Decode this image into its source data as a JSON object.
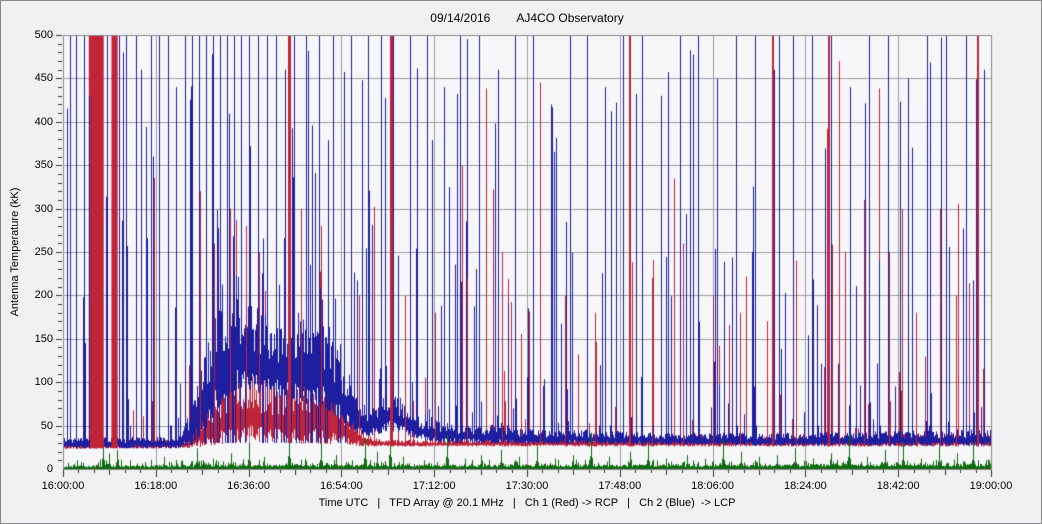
{
  "window": {
    "background": "#f1f1f4",
    "border_color": "#888888"
  },
  "header": {
    "date": "09/14/2016",
    "observatory": "AJ4CO Observatory"
  },
  "footer": {
    "caption": "Time UTC   |   TFD Array @ 20.1 MHz   |   Ch 1 (Red) -> RCP   |   Ch 2 (Blue)  -> LCP"
  },
  "chart_data": {
    "type": "line",
    "title": "09/14/2016  AJ4CO Observatory",
    "ylabel": "Antenna Temperature (kK)",
    "xlabel": "Time UTC",
    "ylim": [
      0,
      500
    ],
    "y_major_step": 50,
    "y_minor_step": 10,
    "x_start": "16:00:00",
    "x_end": "19:00:00",
    "duration_min": 180,
    "x_major_step_min": 18,
    "x_mid_step_min": 9,
    "x_minor_step_min": 3,
    "x_tick_labels": [
      "16:00:00",
      "16:18:00",
      "16:36:00",
      "16:54:00",
      "17:12:00",
      "17:30:00",
      "17:48:00",
      "18:06:00",
      "18:24:00",
      "18:42:00",
      "19:00:00"
    ],
    "y_tick_values": [
      0,
      50,
      100,
      150,
      200,
      250,
      300,
      350,
      400,
      450,
      500
    ],
    "grid": {
      "on": true,
      "color": "#9c9ca4"
    },
    "plot_background": "#f7f7fa",
    "plot_border_color": "#8a8a8a",
    "tick_color": "#333333",
    "legend_position": "bottom-caption",
    "render_seed": 1234,
    "series": [
      {
        "name": "green-trace",
        "label": "",
        "color": "#0f6b0f",
        "fill_from_zero": true,
        "envelope": [
          [
            0,
            0,
            4
          ],
          [
            30,
            0,
            5
          ],
          [
            60,
            0,
            5
          ],
          [
            120,
            0,
            5
          ],
          [
            180,
            0,
            6
          ]
        ],
        "random_spikes": {
          "prob": 0.3,
          "min": 2,
          "max": 11,
          "power": 2
        },
        "cluster_spikes": true,
        "spikes": [
          [
            3.5,
            8
          ],
          [
            7.8,
            34
          ],
          [
            9,
            18
          ],
          [
            10.5,
            22
          ],
          [
            13,
            10
          ],
          [
            16,
            8
          ],
          [
            19.5,
            14
          ],
          [
            23,
            10
          ],
          [
            26,
            24
          ],
          [
            29,
            12
          ],
          [
            32.5,
            18
          ],
          [
            36,
            30
          ],
          [
            39,
            14
          ],
          [
            43.8,
            42
          ],
          [
            47,
            12
          ],
          [
            50,
            30
          ],
          [
            53,
            16
          ],
          [
            56,
            10
          ],
          [
            58.5,
            36
          ],
          [
            61,
            20
          ],
          [
            63.5,
            46
          ],
          [
            66,
            14
          ],
          [
            70,
            10
          ],
          [
            74.5,
            40
          ],
          [
            78,
            12
          ],
          [
            81,
            16
          ],
          [
            85,
            22
          ],
          [
            88.5,
            14
          ],
          [
            92,
            26
          ],
          [
            95.5,
            12
          ],
          [
            99,
            16
          ],
          [
            102.5,
            42
          ],
          [
            106,
            14
          ],
          [
            110,
            20
          ],
          [
            113.5,
            30
          ],
          [
            117,
            12
          ],
          [
            121,
            16
          ],
          [
            124.5,
            12
          ],
          [
            128,
            34
          ],
          [
            131.5,
            20
          ],
          [
            135,
            14
          ],
          [
            138.5,
            16
          ],
          [
            142,
            24
          ],
          [
            145.5,
            12
          ],
          [
            149,
            18
          ],
          [
            152.5,
            40
          ],
          [
            156,
            14
          ],
          [
            159.5,
            22
          ],
          [
            163,
            30
          ],
          [
            166.5,
            12
          ],
          [
            170,
            26
          ],
          [
            173.5,
            18
          ],
          [
            176.5,
            30
          ]
        ]
      },
      {
        "name": "channel-1-red",
        "label": "Ch 1 (Red) -> RCP",
        "color": "#c02438",
        "envelope": [
          [
            0,
            23,
            32
          ],
          [
            24,
            24,
            34
          ],
          [
            26,
            25,
            55
          ],
          [
            28,
            27,
            75
          ],
          [
            30,
            28,
            90
          ],
          [
            32,
            30,
            100
          ],
          [
            34,
            31,
            108
          ],
          [
            36,
            32,
            112
          ],
          [
            38,
            31,
            105
          ],
          [
            40,
            30,
            100
          ],
          [
            42,
            30,
            95
          ],
          [
            44,
            30,
            92
          ],
          [
            46,
            29,
            95
          ],
          [
            48,
            30,
            100
          ],
          [
            50,
            29,
            92
          ],
          [
            52,
            28,
            85
          ],
          [
            54,
            28,
            75
          ],
          [
            56,
            27,
            60
          ],
          [
            58,
            26,
            45
          ],
          [
            60,
            26,
            36
          ],
          [
            65,
            26,
            34
          ],
          [
            70,
            26,
            34
          ],
          [
            80,
            26,
            34
          ],
          [
            90,
            26,
            35
          ],
          [
            100,
            26,
            35
          ],
          [
            110,
            26,
            35
          ],
          [
            120,
            26,
            36
          ],
          [
            130,
            26,
            36
          ],
          [
            140,
            26,
            37
          ],
          [
            150,
            26,
            38
          ],
          [
            160,
            26,
            38
          ],
          [
            170,
            26,
            40
          ],
          [
            180,
            26,
            40
          ]
        ],
        "random_spikes": {
          "prob": 0.09,
          "min": 40,
          "max": 450,
          "power": 3
        },
        "bands": [
          [
            5.0,
            7.9,
            24,
            500
          ],
          [
            9.4,
            10.6,
            24,
            500
          ]
        ],
        "spikes": [
          [
            26.5,
            320
          ],
          [
            29.2,
            260
          ],
          [
            32.4,
            300
          ],
          [
            35.5,
            280
          ],
          [
            38.1,
            250
          ],
          [
            43.6,
            500,
            3
          ],
          [
            46.2,
            300
          ],
          [
            50.1,
            280
          ],
          [
            57.5,
            200
          ],
          [
            63.4,
            500,
            3
          ],
          [
            66.3,
            200
          ],
          [
            72.1,
            180
          ],
          [
            78.4,
            220
          ],
          [
            85.2,
            250
          ],
          [
            92.6,
            445
          ],
          [
            97.3,
            200
          ],
          [
            103.1,
            180
          ],
          [
            109.8,
            500,
            2
          ],
          [
            114.2,
            220
          ],
          [
            120.3,
            260
          ],
          [
            126.1,
            200
          ],
          [
            131.4,
            180
          ],
          [
            137.5,
            500,
            2
          ],
          [
            142.2,
            240
          ],
          [
            148.4,
            500,
            2
          ],
          [
            150.6,
            470
          ],
          [
            155.3,
            200
          ],
          [
            160.2,
            250
          ],
          [
            165.4,
            180
          ],
          [
            170.1,
            300
          ],
          [
            173.3,
            200
          ],
          [
            177.3,
            500,
            2
          ]
        ]
      },
      {
        "name": "channel-2-blue",
        "label": "Ch 2 (Blue)  -> LCP",
        "color": "#1e1ea0",
        "envelope": [
          [
            0,
            24,
            36
          ],
          [
            22,
            24,
            38
          ],
          [
            25,
            28,
            70
          ],
          [
            27,
            40,
            120
          ],
          [
            29,
            60,
            170
          ],
          [
            31,
            80,
            195
          ],
          [
            33,
            90,
            205
          ],
          [
            35,
            95,
            200
          ],
          [
            37,
            90,
            190
          ],
          [
            39,
            85,
            180
          ],
          [
            41,
            80,
            170
          ],
          [
            43,
            85,
            175
          ],
          [
            45,
            80,
            185
          ],
          [
            47,
            75,
            170
          ],
          [
            49,
            80,
            175
          ],
          [
            51,
            70,
            160
          ],
          [
            53,
            60,
            140
          ],
          [
            55,
            50,
            110
          ],
          [
            57,
            42,
            85
          ],
          [
            59,
            38,
            70
          ],
          [
            61,
            40,
            80
          ],
          [
            63,
            45,
            90
          ],
          [
            65,
            42,
            85
          ],
          [
            67,
            38,
            70
          ],
          [
            69,
            35,
            60
          ],
          [
            72,
            32,
            55
          ],
          [
            76,
            30,
            52
          ],
          [
            80,
            30,
            50
          ],
          [
            85,
            30,
            48
          ],
          [
            90,
            29,
            46
          ],
          [
            95,
            29,
            44
          ],
          [
            100,
            29,
            46
          ],
          [
            105,
            29,
            44
          ],
          [
            110,
            28,
            44
          ],
          [
            115,
            28,
            42
          ],
          [
            120,
            28,
            42
          ],
          [
            125,
            28,
            42
          ],
          [
            130,
            28,
            42
          ],
          [
            135,
            27,
            42
          ],
          [
            140,
            27,
            42
          ],
          [
            145,
            27,
            42
          ],
          [
            150,
            27,
            43
          ],
          [
            155,
            27,
            43
          ],
          [
            160,
            27,
            44
          ],
          [
            165,
            27,
            45
          ],
          [
            170,
            27,
            45
          ],
          [
            175,
            27,
            46
          ],
          [
            180,
            27,
            46
          ]
        ],
        "whisker_down": {
          "prob": 0.3,
          "level": 30,
          "min_range": 60
        },
        "random_spikes": {
          "prob": 0.22,
          "min": 50,
          "max": 500,
          "power": 2.2
        },
        "spikes": [
          [
            1.3,
            500
          ],
          [
            2.6,
            500
          ],
          [
            4.1,
            500
          ],
          [
            5.0,
            430
          ],
          [
            8.6,
            500
          ],
          [
            10.9,
            500
          ],
          [
            11.6,
            480
          ],
          [
            12.3,
            500
          ],
          [
            14.1,
            500
          ],
          [
            15.2,
            460
          ],
          [
            17.0,
            500
          ],
          [
            18.7,
            500
          ],
          [
            20.3,
            500
          ],
          [
            21.9,
            440
          ],
          [
            23.6,
            500
          ],
          [
            25.1,
            500
          ],
          [
            26.4,
            500
          ],
          [
            27.7,
            500
          ],
          [
            29.0,
            500
          ],
          [
            30.4,
            500
          ],
          [
            31.8,
            500
          ],
          [
            33.2,
            500
          ],
          [
            34.6,
            500
          ],
          [
            36.1,
            500
          ],
          [
            37.9,
            500
          ],
          [
            39.6,
            500
          ],
          [
            41.3,
            500
          ],
          [
            43.0,
            460
          ],
          [
            44.9,
            500
          ],
          [
            47.1,
            500
          ],
          [
            49.6,
            500
          ],
          [
            52.3,
            500
          ],
          [
            55.9,
            500
          ],
          [
            59.1,
            500
          ],
          [
            61.6,
            500
          ],
          [
            64.1,
            500
          ],
          [
            67.3,
            500
          ],
          [
            70.6,
            500
          ],
          [
            73.9,
            440
          ],
          [
            77.1,
            500
          ],
          [
            80.6,
            500
          ],
          [
            84.3,
            460
          ],
          [
            87.6,
            500
          ],
          [
            91.1,
            500
          ],
          [
            94.6,
            420
          ],
          [
            98.3,
            500
          ],
          [
            101.6,
            500
          ],
          [
            105.1,
            440
          ],
          [
            108.6,
            500
          ],
          [
            112.3,
            500
          ],
          [
            115.9,
            430
          ],
          [
            119.6,
            500
          ],
          [
            123.1,
            500
          ],
          [
            126.9,
            450
          ],
          [
            130.6,
            500
          ],
          [
            134.3,
            500
          ],
          [
            137.9,
            460
          ],
          [
            141.6,
            500
          ],
          [
            145.3,
            500
          ],
          [
            148.9,
            500
          ],
          [
            152.6,
            440
          ],
          [
            156.3,
            500
          ],
          [
            160.1,
            500
          ],
          [
            163.9,
            450
          ],
          [
            167.6,
            500
          ],
          [
            171.3,
            500
          ],
          [
            175.1,
            500
          ],
          [
            178.6,
            460
          ]
        ]
      }
    ]
  }
}
